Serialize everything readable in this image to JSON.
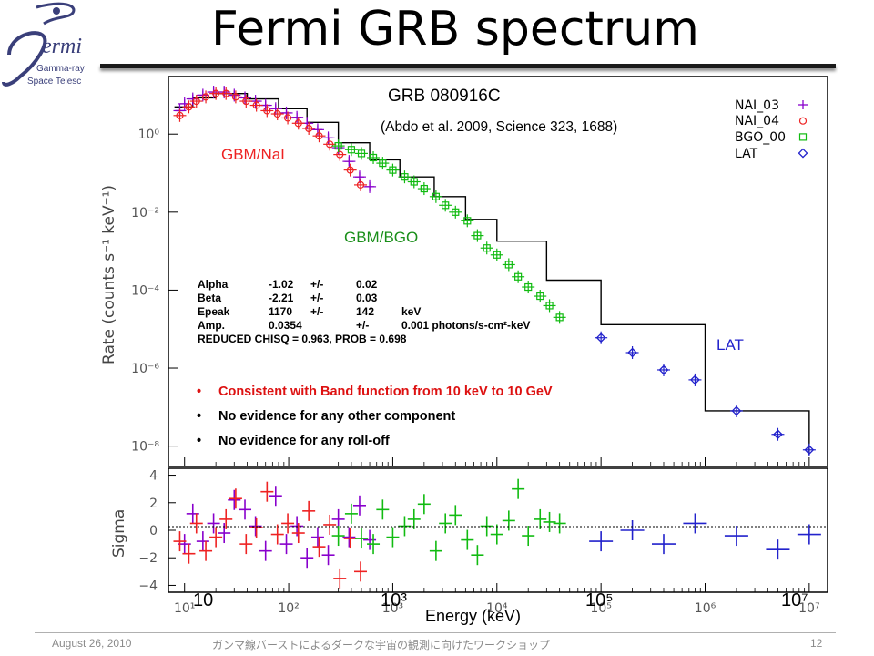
{
  "slide": {
    "title": "Fermi GRB spectrum",
    "footer_date": "August 26, 2010",
    "footer_center": "ガンマ線バーストによるダークな宇宙の観測に向けたワークショップ",
    "page_number": "12"
  },
  "logo": {
    "name": "ermi",
    "line1": "Gamma-ray",
    "line2": "Space Telesc"
  },
  "annotations": {
    "grb_name": "GRB 080916C",
    "citation": "(Abdo et al. 2009, Science 323, 1688)",
    "gbm_nai": "GBM/NaI",
    "gbm_bgo": "GBM/BGO",
    "lat": "LAT"
  },
  "legend": [
    {
      "label": "NAI_03",
      "marker": "plus",
      "color": "#8800cc"
    },
    {
      "label": "NAI_04",
      "marker": "circle",
      "color": "#ee2222"
    },
    {
      "label": "BGO_00",
      "marker": "square",
      "color": "#11bb11"
    },
    {
      "label": "LAT",
      "marker": "diamond",
      "color": "#2222cc"
    }
  ],
  "fit_params": {
    "rows": [
      [
        "Alpha",
        "-1.02",
        "+/-",
        "0.02",
        ""
      ],
      [
        "Beta",
        "-2.21",
        "+/-",
        "0.03",
        ""
      ],
      [
        "Epeak",
        "1170",
        "+/-",
        "142",
        "keV"
      ],
      [
        "Amp.",
        "0.0354",
        "",
        "+/-",
        "0.001  photons/s-cm²-keV"
      ]
    ],
    "chisq": "REDUCED CHISQ = 0.963, PROB = 0.698"
  },
  "bullets": [
    {
      "text": "Consistent with Band function from 10 keV to 10 GeV",
      "color": "#dd1111"
    },
    {
      "text": "No evidence for any other component",
      "color": "#000000"
    },
    {
      "text": "No evidence for any roll-off",
      "color": "#000000"
    }
  ],
  "axes": {
    "ylabel_top": "Rate (counts s⁻¹ keV⁻¹)",
    "ylabel_bottom": "Sigma",
    "xlabel": "Energy (keV)",
    "x_overlay_labels": [
      "10",
      "10³",
      "10⁵",
      "10⁷"
    ]
  },
  "chart_data": [
    {
      "type": "scatter",
      "panel": "spectrum",
      "xscale": "log",
      "yscale": "log",
      "xlim": [
        7,
        15000000
      ],
      "ylim": [
        3e-09,
        30
      ],
      "x_ticks": [
        "10¹",
        "10²",
        "10³",
        "10⁴",
        "10⁵",
        "10⁶",
        "10⁷"
      ],
      "y_ticks": [
        "10⁰",
        "10⁻²",
        "10⁻⁴",
        "10⁻⁶",
        "10⁻⁸"
      ],
      "series": [
        {
          "name": "NAI_03",
          "color": "#8800cc",
          "marker": "plus",
          "x": [
            9,
            10,
            12,
            15,
            19,
            24,
            30,
            38,
            48,
            60,
            75,
            95,
            120,
            150,
            190,
            240,
            300,
            380,
            480,
            600
          ],
          "y": [
            4.0,
            6.0,
            8.0,
            10,
            12,
            12,
            10,
            8.5,
            7.0,
            5.5,
            4.5,
            3.5,
            2.7,
            1.9,
            1.3,
            0.8,
            0.45,
            0.2,
            0.08,
            0.045
          ]
        },
        {
          "name": "NAI_04",
          "color": "#ee2222",
          "marker": "circle",
          "x": [
            9,
            11,
            13,
            16,
            20,
            25,
            31,
            39,
            49,
            62,
            78,
            98,
            124,
            156,
            196,
            248,
            310,
            390,
            490
          ],
          "y": [
            3.0,
            5.0,
            7.0,
            9.0,
            11,
            11,
            9.0,
            7.0,
            5.5,
            4.0,
            3.3,
            2.6,
            1.9,
            1.4,
            0.9,
            0.55,
            0.3,
            0.12,
            0.05
          ]
        },
        {
          "name": "BGO_00",
          "color": "#11bb11",
          "marker": "square",
          "x": [
            300,
            400,
            500,
            650,
            800,
            1000,
            1300,
            1600,
            2000,
            2600,
            3200,
            4000,
            5200,
            6500,
            8000,
            10000,
            13000,
            16000,
            20000,
            26000,
            32000,
            40000
          ],
          "y": [
            0.5,
            0.4,
            0.32,
            0.25,
            0.18,
            0.12,
            0.08,
            0.06,
            0.04,
            0.025,
            0.015,
            0.01,
            0.006,
            0.0025,
            0.0012,
            0.0008,
            0.00045,
            0.00022,
            0.00012,
            7e-05,
            4e-05,
            2e-05
          ]
        },
        {
          "name": "LAT",
          "color": "#2222cc",
          "marker": "diamond",
          "x": [
            100000,
            200000,
            400000,
            800000,
            2000000,
            5000000,
            10000000
          ],
          "y": [
            6e-06,
            2.5e-06,
            9e-07,
            5e-07,
            8e-08,
            2e-08,
            8e-09
          ]
        }
      ],
      "model_curve": {
        "name": "Band function",
        "color": "#000000",
        "x": [
          8,
          12,
          20,
          40,
          80,
          150,
          300,
          600,
          1170,
          2500,
          5000,
          10000,
          30000,
          100000,
          1000000,
          10000000
        ],
        "y": [
          5.0,
          8.5,
          11,
          8.0,
          4.5,
          2.0,
          0.6,
          0.22,
          0.08,
          0.025,
          0.0065,
          0.0018,
          0.00018,
          1.3e-05,
          8e-08,
          6e-09
        ]
      }
    },
    {
      "type": "scatter",
      "panel": "residuals",
      "xscale": "log",
      "xlim": [
        7,
        15000000
      ],
      "ylim": [
        -4.5,
        4.5
      ],
      "y_ticks": [
        -4,
        -2,
        0,
        2,
        4
      ],
      "series": [
        {
          "name": "NAI_03",
          "color": "#8800cc",
          "x": [
            10,
            12,
            15,
            19,
            24,
            30,
            38,
            48,
            60,
            75,
            95,
            120,
            150,
            190,
            240,
            300,
            380,
            480,
            600
          ],
          "y": [
            -1.0,
            1.2,
            -0.8,
            0.5,
            -0.2,
            2.2,
            1.5,
            0.3,
            -1.5,
            2.5,
            -1.0,
            0.3,
            -2.0,
            -0.5,
            -1.8,
            0.8,
            -0.5,
            1.8,
            -0.7
          ]
        },
        {
          "name": "NAI_04",
          "color": "#ee2222",
          "x": [
            9,
            11,
            13,
            16,
            20,
            25,
            31,
            39,
            49,
            62,
            78,
            98,
            124,
            156,
            196,
            248,
            310,
            390,
            490
          ],
          "y": [
            -0.8,
            -1.7,
            0.5,
            -1.5,
            -0.5,
            0.8,
            2.3,
            -1.0,
            0.2,
            2.8,
            -0.3,
            0.5,
            -0.2,
            1.4,
            -1.2,
            0.4,
            -3.5,
            -0.6,
            -3.0
          ]
        },
        {
          "name": "BGO_00",
          "color": "#11bb11",
          "x": [
            300,
            400,
            500,
            650,
            800,
            1000,
            1300,
            1600,
            2000,
            2600,
            3200,
            4000,
            5200,
            6500,
            8000,
            10000,
            13000,
            16000,
            20000,
            26000,
            32000,
            40000
          ],
          "y": [
            -0.4,
            1.2,
            -0.6,
            -1.0,
            1.5,
            -0.5,
            0.3,
            0.8,
            1.9,
            -1.5,
            0.5,
            1.1,
            -0.7,
            -1.8,
            0.3,
            -0.3,
            0.7,
            3.0,
            -0.4,
            0.8,
            0.6,
            0.5
          ]
        },
        {
          "name": "LAT",
          "color": "#2222cc",
          "x": [
            100000,
            200000,
            400000,
            800000,
            2000000,
            5000000,
            10000000
          ],
          "y": [
            -0.8,
            0.0,
            -1.0,
            0.5,
            -0.4,
            -1.4,
            -0.3
          ]
        }
      ]
    }
  ]
}
